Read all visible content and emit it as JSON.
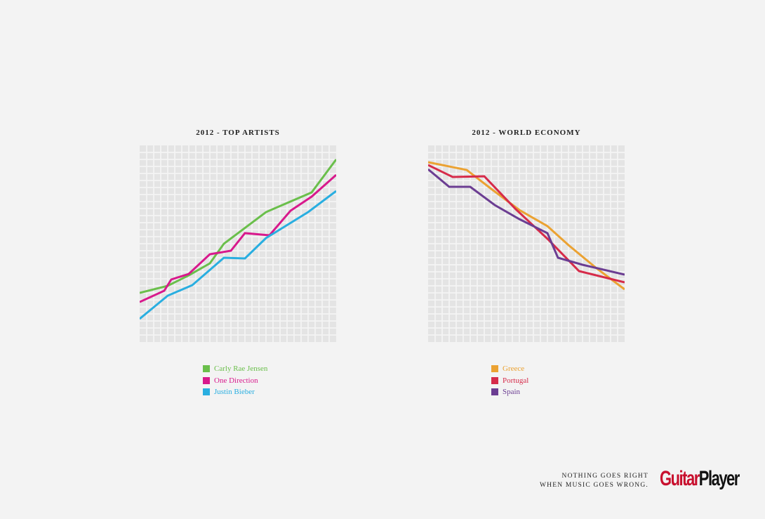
{
  "chart_data": [
    {
      "type": "line",
      "title": "2012 - TOP ARTISTS",
      "xlabel": "",
      "ylabel": "",
      "xlim": [
        0,
        28
      ],
      "ylim": [
        0,
        28
      ],
      "grid": true,
      "legend_position": "bottom",
      "series": [
        {
          "name": "Carly Rae Jensen",
          "color": "#6abf4b",
          "x": [
            0,
            4,
            7,
            10,
            12,
            18,
            24.5,
            28
          ],
          "y": [
            7,
            8,
            9.5,
            11.2,
            14,
            18.5,
            21.3,
            26
          ]
        },
        {
          "name": "One Direction",
          "color": "#d8198c",
          "x": [
            0,
            3.5,
            4.5,
            7,
            10,
            13,
            15,
            18.5,
            21.5,
            24.5,
            28
          ],
          "y": [
            5.7,
            7.3,
            8.9,
            9.7,
            12.5,
            13,
            15.5,
            15.2,
            18.7,
            20.7,
            23.8
          ]
        },
        {
          "name": "Justin Bieber",
          "color": "#29aee0",
          "x": [
            0,
            4,
            7.5,
            12,
            15,
            18,
            24,
            28
          ],
          "y": [
            3.3,
            6.6,
            8.1,
            12,
            11.9,
            14.8,
            18.5,
            21.5
          ]
        }
      ]
    },
    {
      "type": "line",
      "title": "2012 - WORLD ECONOMY",
      "xlabel": "",
      "ylabel": "",
      "xlim": [
        0,
        28
      ],
      "ylim": [
        0,
        28
      ],
      "grid": true,
      "legend_position": "bottom",
      "series": [
        {
          "name": "Greece",
          "color": "#eba232",
          "x": [
            0,
            5.5,
            9,
            13,
            17,
            20,
            24,
            28
          ],
          "y": [
            25.6,
            24.5,
            21.8,
            18.8,
            16.5,
            13.8,
            10.5,
            7.5
          ]
        },
        {
          "name": "Portugal",
          "color": "#d62b4a",
          "x": [
            0,
            3.5,
            8,
            12.5,
            17,
            21.5,
            28
          ],
          "y": [
            25.2,
            23.5,
            23.6,
            18.9,
            14.7,
            10.1,
            8.5
          ]
        },
        {
          "name": "Spain",
          "color": "#6b3d92",
          "x": [
            0,
            3,
            6,
            9.5,
            13,
            17,
            18.5,
            22,
            28
          ],
          "y": [
            24.6,
            22.1,
            22.1,
            19.5,
            17.5,
            15.5,
            12,
            11,
            9.6
          ]
        }
      ]
    }
  ],
  "footer": {
    "tagline_line1": "NOTHING GOES RIGHT",
    "tagline_line2": "WHEN MUSIC GOES WRONG.",
    "logo_part1": "Guitar",
    "logo_part2": "Player"
  }
}
